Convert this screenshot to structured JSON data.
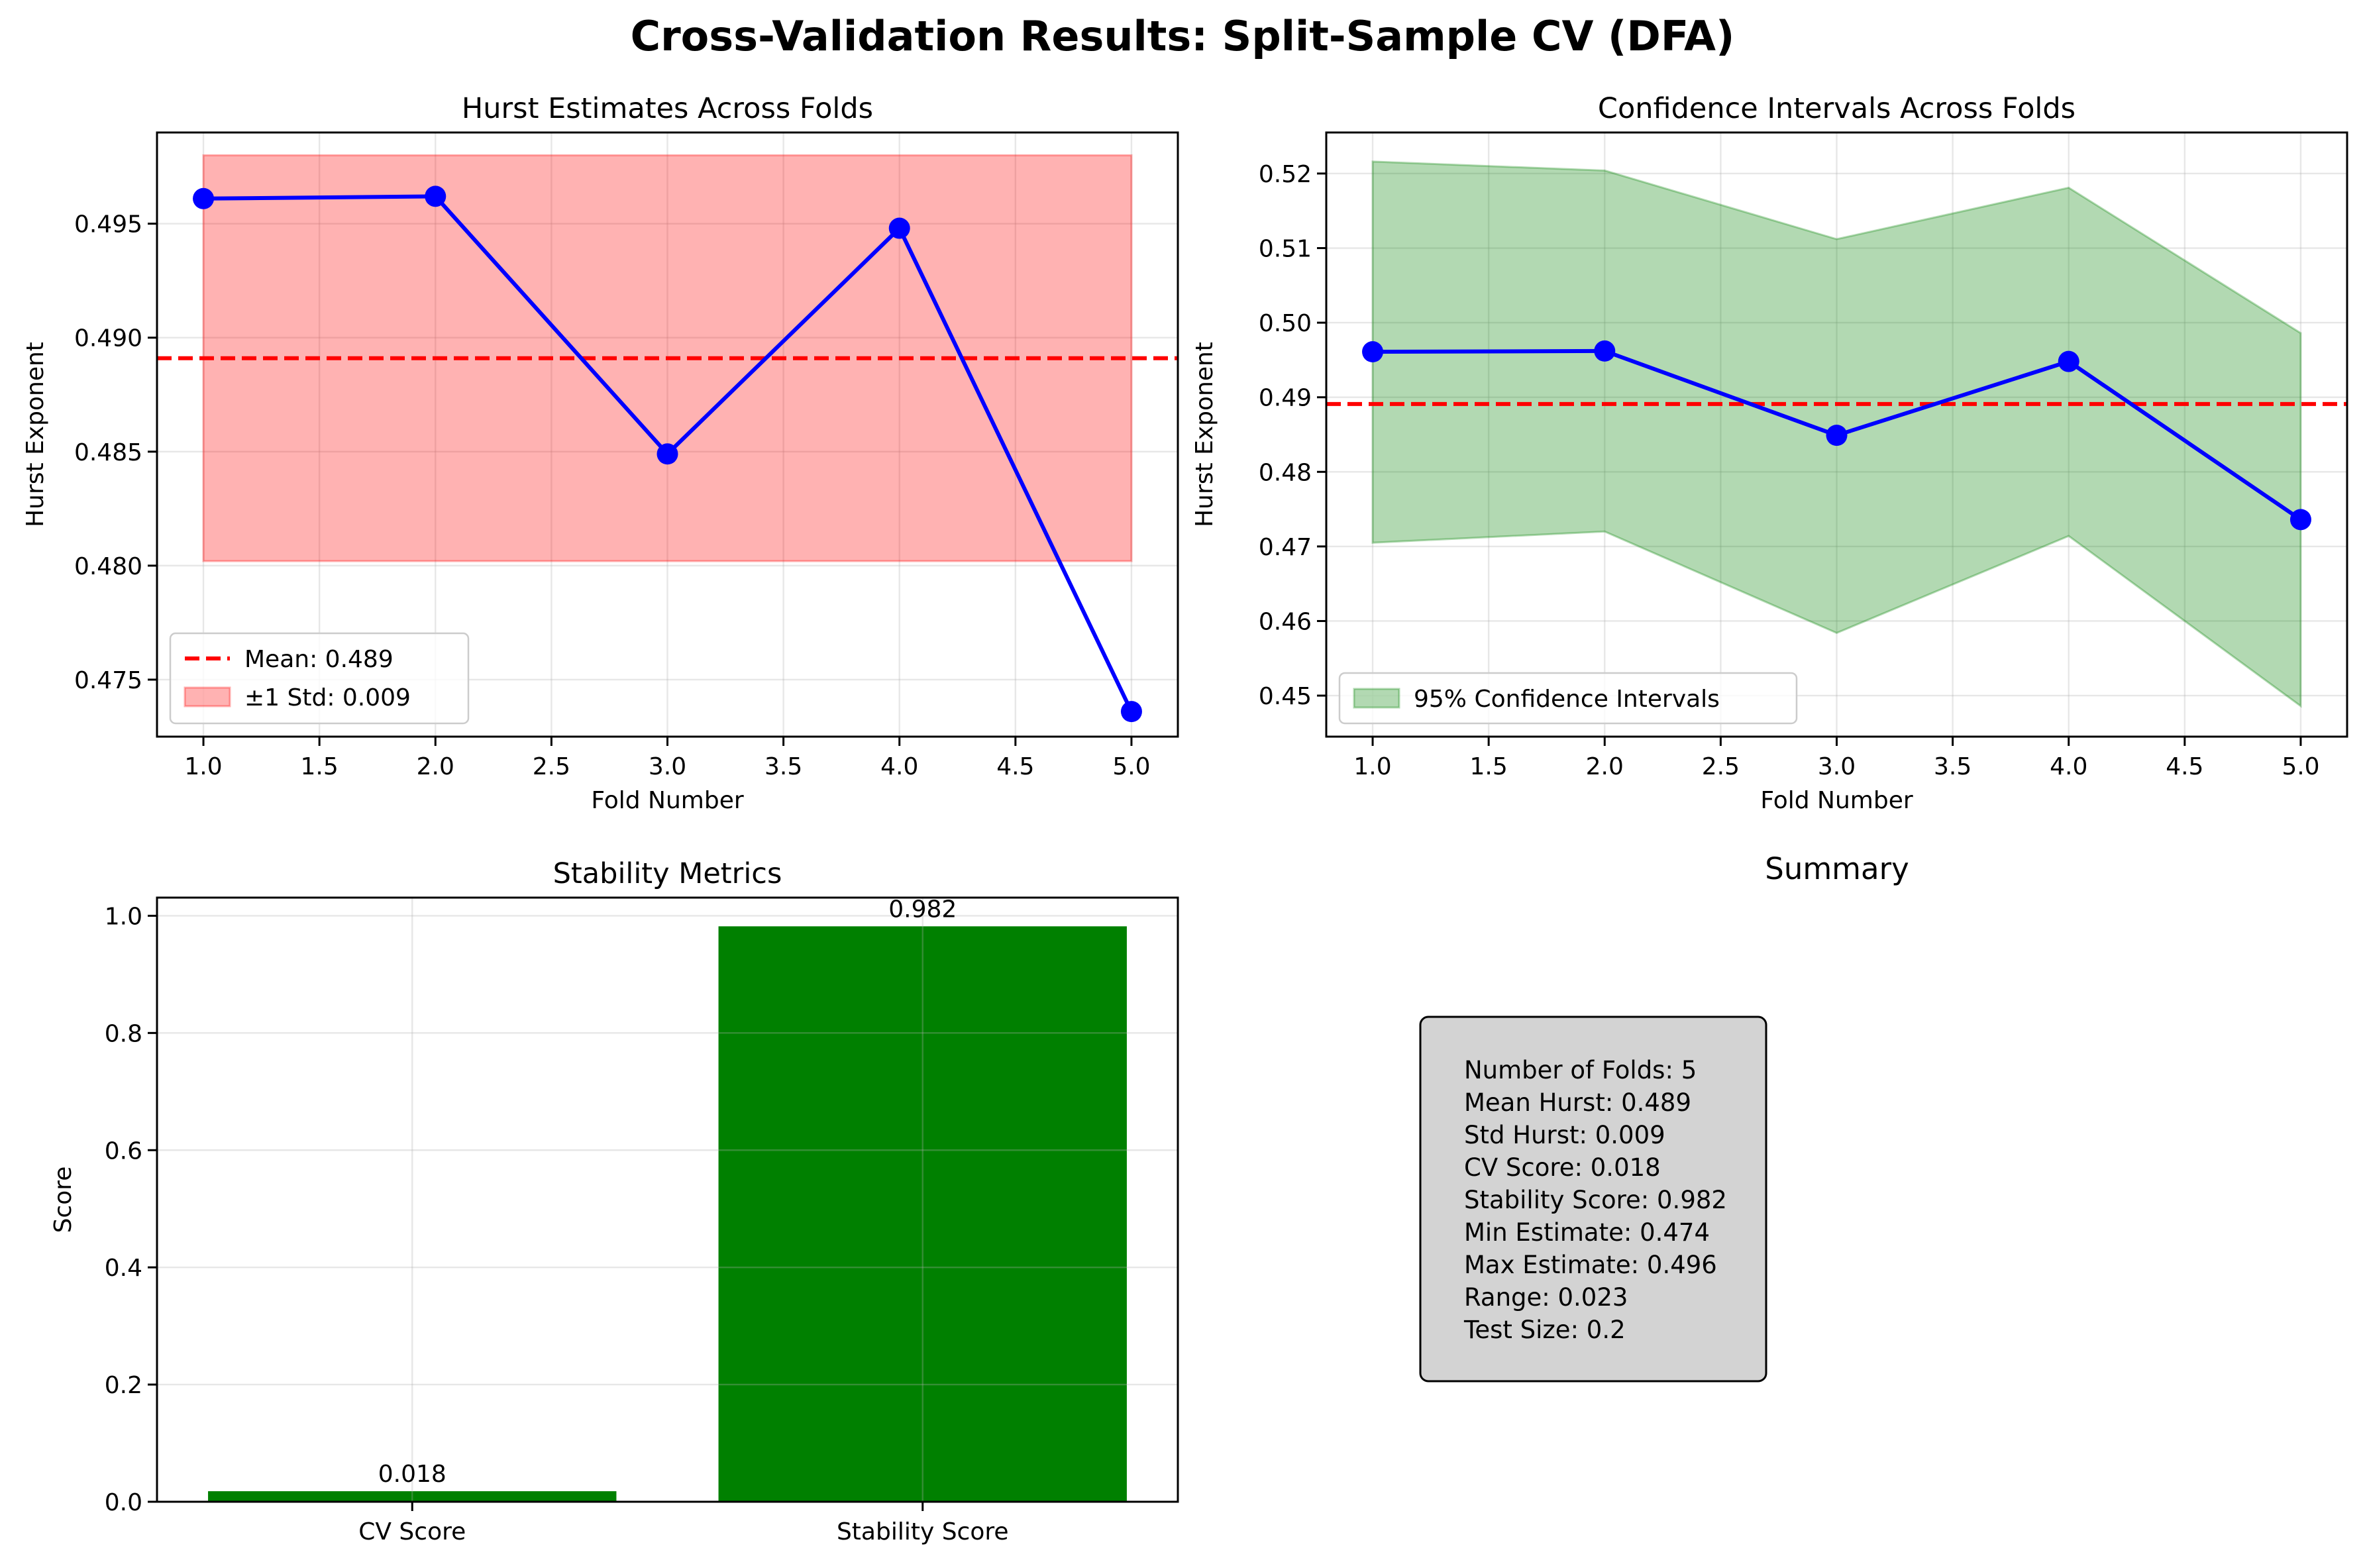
{
  "figure": {
    "title": "Cross-Validation Results: Split-Sample CV (DFA)"
  },
  "chart_data": [
    {
      "id": "hurst-estimates",
      "type": "line",
      "title": "Hurst Estimates Across Folds",
      "xlabel": "Fold Number",
      "ylabel": "Hurst Exponent",
      "x": [
        1,
        2,
        3,
        4,
        5
      ],
      "series": [
        {
          "values": [
            0.4961,
            0.4962,
            0.4849,
            0.4948,
            0.4736
          ],
          "color": "#0000ff"
        }
      ],
      "mean": 0.4891,
      "band": {
        "lower": 0.4802,
        "upper": 0.498,
        "color": "#ff0000"
      },
      "xlim": [
        0.8,
        5.2
      ],
      "ylim": [
        0.4725,
        0.499
      ],
      "xticks": [
        "1.0",
        "1.5",
        "2.0",
        "2.5",
        "3.0",
        "3.5",
        "4.0",
        "4.5",
        "5.0"
      ],
      "yticks": [
        "0.475",
        "0.480",
        "0.485",
        "0.490",
        "0.495"
      ],
      "legend": {
        "position": "lower-left",
        "entries": [
          "Mean: 0.489",
          "±1 Std: 0.009"
        ]
      },
      "grid": true
    },
    {
      "id": "confidence-intervals",
      "type": "area",
      "title": "Confidence Intervals Across Folds",
      "xlabel": "Fold Number",
      "ylabel": "Hurst Exponent",
      "x": [
        1,
        2,
        3,
        4,
        5
      ],
      "series": [
        {
          "values": [
            0.4961,
            0.4962,
            0.4849,
            0.4948,
            0.4736
          ],
          "color": "#0000ff"
        }
      ],
      "ci_lower": [
        0.4705,
        0.472,
        0.4584,
        0.4714,
        0.4486
      ],
      "ci_upper": [
        0.5216,
        0.5204,
        0.5112,
        0.5181,
        0.4986
      ],
      "ci_color": "#008000",
      "mean": 0.4891,
      "xlim": [
        0.8,
        5.2
      ],
      "ylim": [
        0.4445,
        0.5255
      ],
      "xticks": [
        "1.0",
        "1.5",
        "2.0",
        "2.5",
        "3.0",
        "3.5",
        "4.0",
        "4.5",
        "5.0"
      ],
      "yticks": [
        "0.45",
        "0.46",
        "0.47",
        "0.48",
        "0.49",
        "0.50",
        "0.51",
        "0.52"
      ],
      "legend": {
        "position": "lower-left",
        "entries": [
          "95% Confidence Intervals"
        ]
      },
      "grid": true
    },
    {
      "id": "stability-metrics",
      "type": "bar",
      "title": "Stability Metrics",
      "xlabel": "",
      "ylabel": "Score",
      "categories": [
        "CV Score",
        "Stability Score"
      ],
      "values": [
        0.018,
        0.982
      ],
      "value_labels": [
        "0.018",
        "0.982"
      ],
      "color": "#008000",
      "ylim": [
        0,
        1.031
      ],
      "yticks": [
        "0.0",
        "0.2",
        "0.4",
        "0.6",
        "0.8",
        "1.0"
      ],
      "grid": true
    }
  ],
  "summary": {
    "title": "Summary",
    "lines": [
      "Number of Folds: 5",
      "Mean Hurst: 0.489",
      "Std Hurst: 0.009",
      "CV Score: 0.018",
      "Stability Score: 0.982",
      "Min Estimate: 0.474",
      "Max Estimate: 0.496",
      "Range: 0.023",
      "Test Size: 0.2"
    ]
  }
}
